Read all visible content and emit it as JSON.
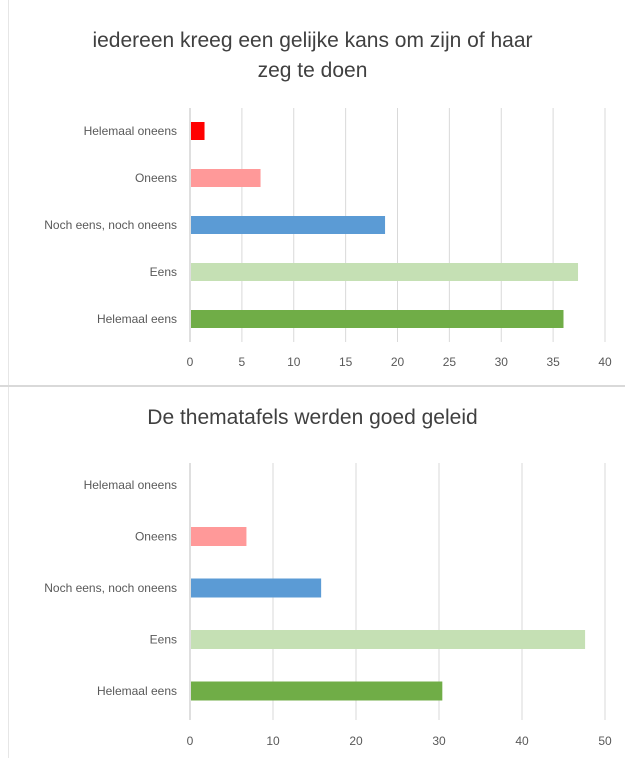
{
  "chart_data": [
    {
      "type": "bar",
      "orientation": "horizontal",
      "title": "iedereen kreeg een gelijke kans om zijn of haar zeg te doen",
      "categories": [
        "Helemaal oneens",
        "Oneens",
        "Noch eens, noch oneens",
        "Eens",
        "Helemaal eens"
      ],
      "values": [
        1.4,
        6.8,
        18.8,
        37.4,
        36.0
      ],
      "bar_colors": [
        "#ff0000",
        "#ff9999",
        "#5b9bd5",
        "#c5e0b4",
        "#70ad47"
      ],
      "xlim": [
        0,
        40
      ],
      "xticks": [
        "0",
        "5",
        "10",
        "15",
        "20",
        "25",
        "30",
        "35",
        "40"
      ],
      "grid": "vertical"
    },
    {
      "type": "bar",
      "orientation": "horizontal",
      "title": "De thematafels werden goed geleid",
      "categories": [
        "Helemaal oneens",
        "Oneens",
        "Noch eens, noch oneens",
        "Eens",
        "Helemaal eens"
      ],
      "values": [
        0,
        6.8,
        15.8,
        47.6,
        30.4
      ],
      "bar_colors": [
        "#ff0000",
        "#ff9999",
        "#5b9bd5",
        "#c5e0b4",
        "#70ad47"
      ],
      "xlim": [
        0,
        50
      ],
      "xticks": [
        "0",
        "10",
        "20",
        "30",
        "40",
        "50"
      ],
      "grid": "vertical"
    }
  ]
}
